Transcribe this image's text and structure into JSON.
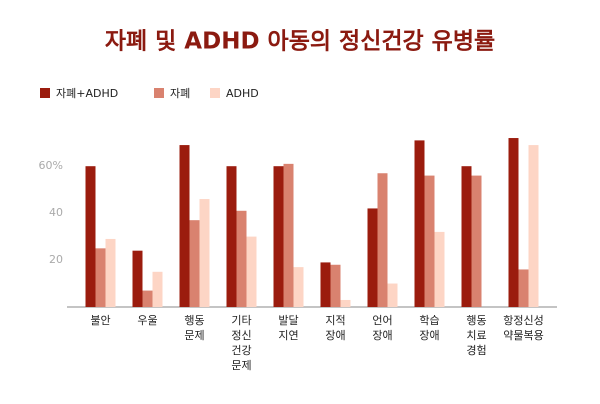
{
  "chart_data": {
    "type": "bar",
    "title": "자폐 및 ADHD 아동의 정신건강 유병률",
    "categories": [
      [
        "불안"
      ],
      [
        "우울"
      ],
      [
        "행동",
        "문제"
      ],
      [
        "기타",
        "정신",
        "건강",
        "문제"
      ],
      [
        "발달",
        "지연"
      ],
      [
        "지적",
        "장애"
      ],
      [
        "언어",
        "장애"
      ],
      [
        "학습",
        "장애"
      ],
      [
        "행동",
        "치료",
        "경험"
      ],
      [
        "항정신성",
        "약물복용"
      ]
    ],
    "series": [
      {
        "name": "자폐+ADHD",
        "color": "#9b1c0e",
        "values": [
          60,
          24,
          69,
          60,
          60,
          19,
          42,
          71,
          60,
          72
        ]
      },
      {
        "name": "자폐",
        "color": "#d9826f",
        "values": [
          25,
          7,
          37,
          41,
          61,
          18,
          57,
          56,
          56,
          16
        ]
      },
      {
        "name": "ADHD",
        "color": "#fdd5c5",
        "values": [
          29,
          15,
          46,
          30,
          17,
          3,
          10,
          32,
          null,
          69
        ]
      }
    ],
    "ylim": [
      0,
      75
    ],
    "yticks": [
      20,
      40,
      {
        "value": 60,
        "label": "60%"
      }
    ]
  }
}
